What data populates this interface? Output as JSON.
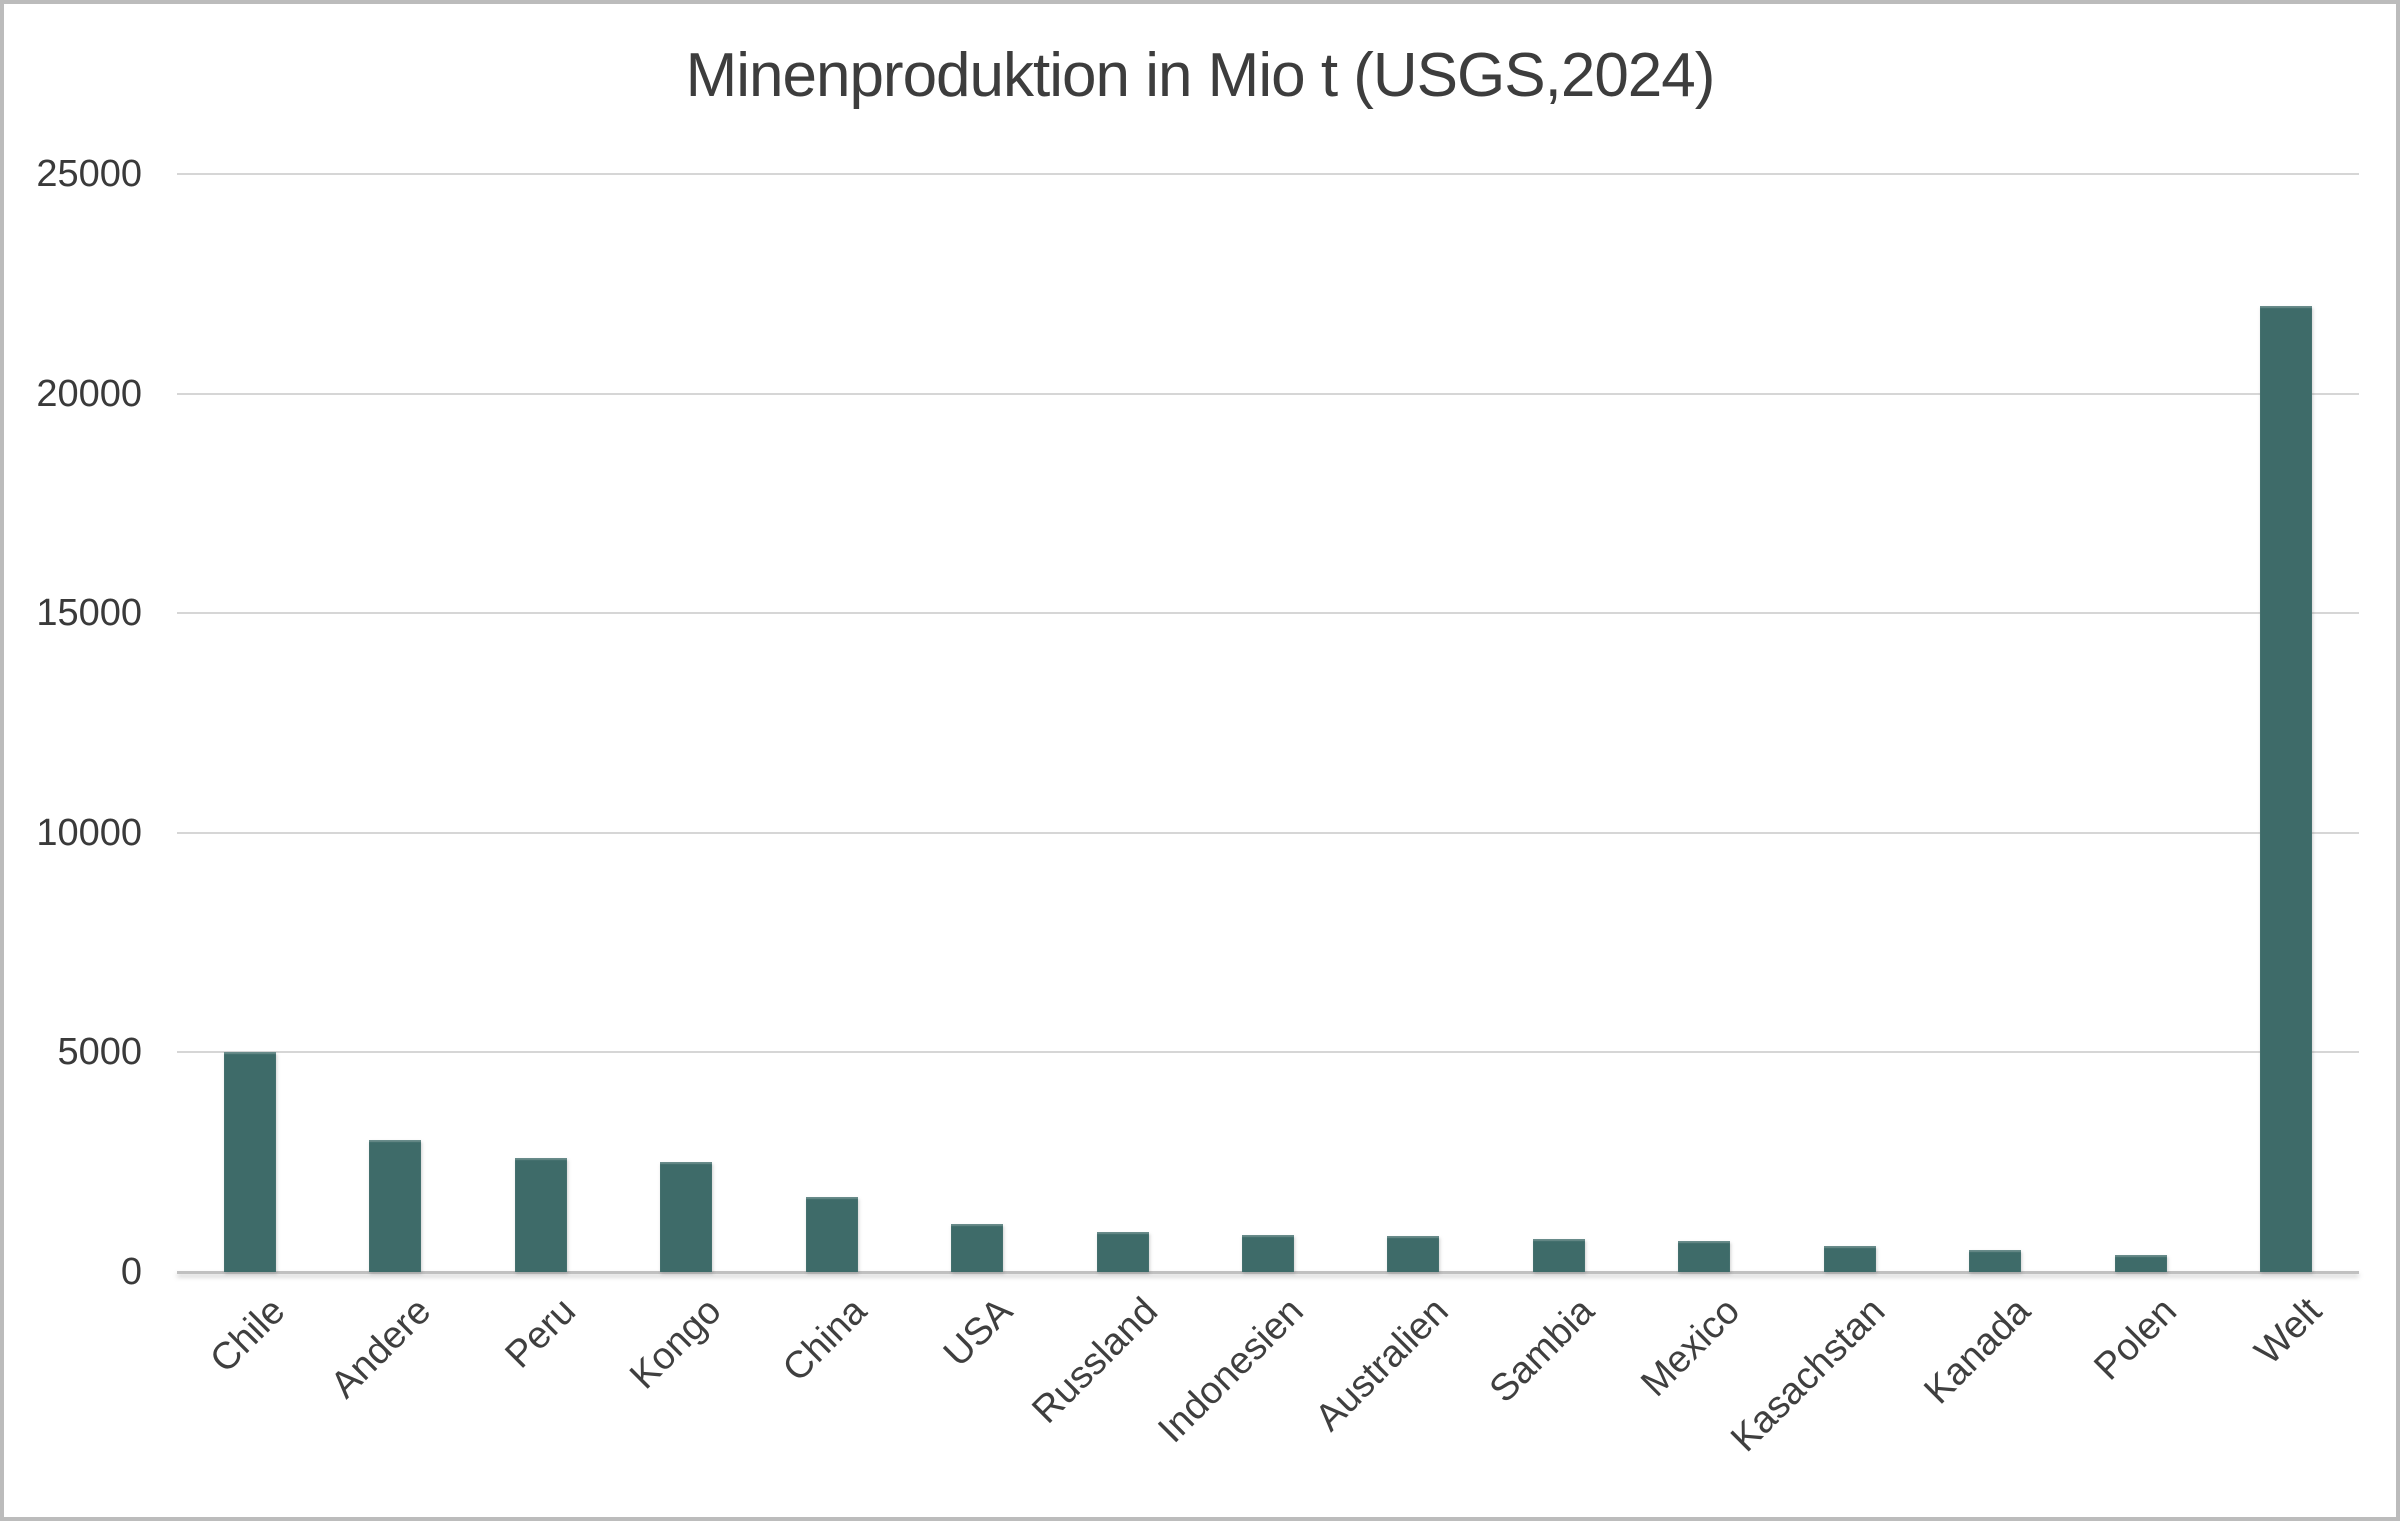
{
  "frame": {
    "background": "#ffffff",
    "border_color": "#bcbcbc"
  },
  "chart_data": {
    "type": "bar",
    "title": "Minenproduktion in Mio t (USGS,2024)",
    "categories": [
      "Chile",
      "Andere",
      "Peru",
      "Kongo",
      "China",
      "USA",
      "Russland",
      "Indonesien",
      "Australien",
      "Sambia",
      "Mexico",
      "Kasachstan",
      "Kanada",
      "Polen",
      "Welt"
    ],
    "values": [
      5000,
      3000,
      2600,
      2500,
      1700,
      1100,
      910,
      840,
      810,
      760,
      700,
      600,
      510,
      390,
      22000
    ],
    "xlabel": "",
    "ylabel": "",
    "ylim": [
      0,
      25000
    ],
    "y_ticks": [
      0,
      5000,
      10000,
      15000,
      20000,
      25000
    ],
    "grid": "horizontal-on",
    "legend": "none",
    "x_label_rotation_deg": 45,
    "colors": {
      "bar": "#3e6b69",
      "gridline": "#d6d6d6",
      "axis_line": "#c0c0c0",
      "title_text": "#3d3d3d",
      "tick_text": "#3a3a3a"
    }
  }
}
